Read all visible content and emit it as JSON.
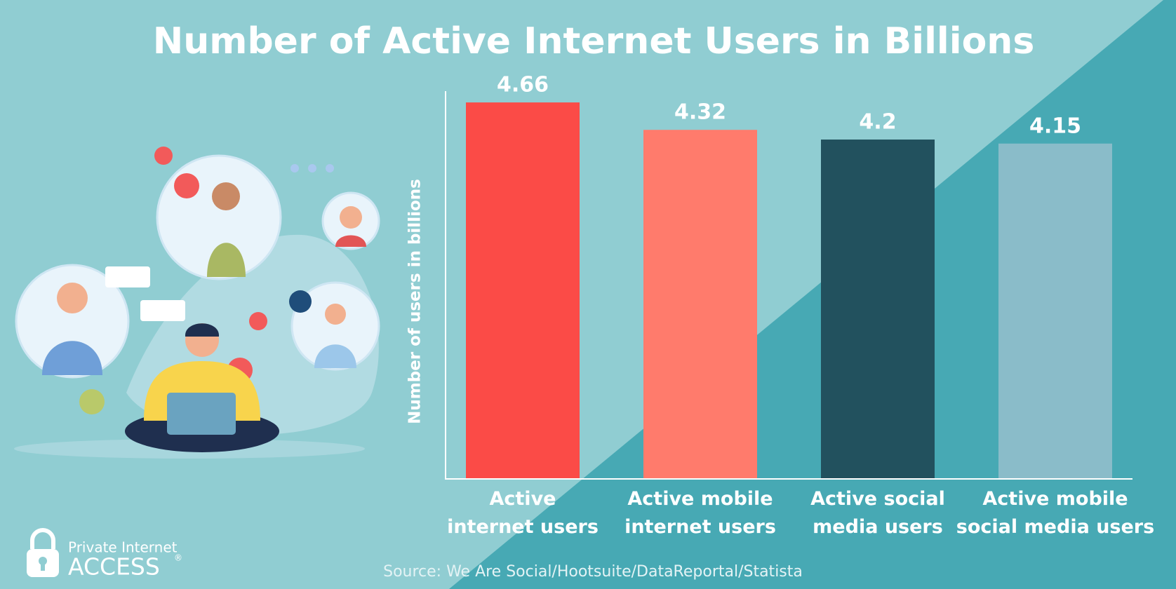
{
  "chart_data": {
    "type": "bar",
    "title": "Number of Active Internet Users in Billions",
    "y_label": "Number of users in billions",
    "categories": [
      "Active\ninternet users",
      "Active mobile\ninternet users",
      "Active  social\nmedia users",
      "Active mobile\nsocial media users"
    ],
    "values": [
      4.66,
      4.32,
      4.2,
      4.15
    ],
    "colors": [
      "#fb4b47",
      "#ff7b6c",
      "#22515e",
      "#8abcc9"
    ],
    "ylim": [
      0,
      5
    ],
    "source": "Source: We Are Social/Hootsuite/DataReportal/Statista"
  },
  "logo": {
    "line1": "Private Internet",
    "line2": "ACCESS",
    "mark": "®"
  }
}
